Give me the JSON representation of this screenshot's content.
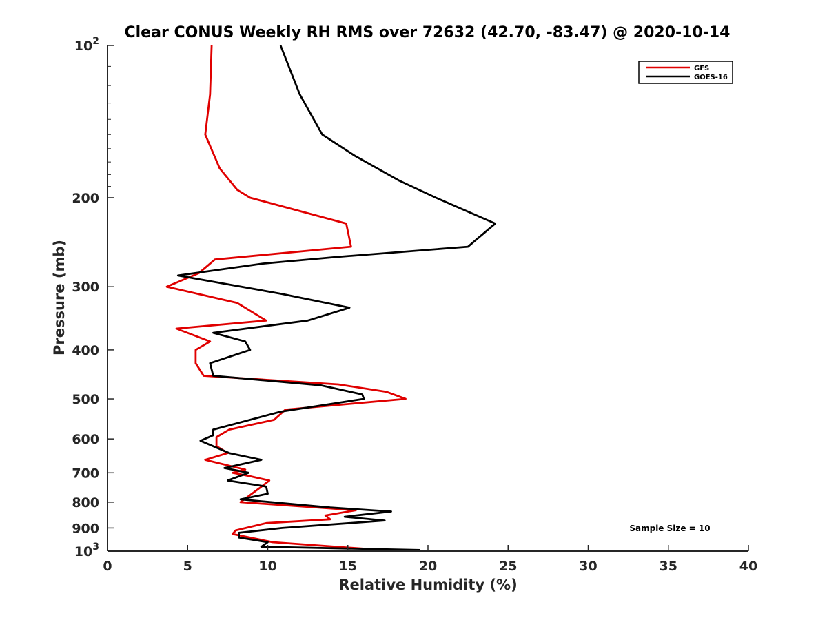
{
  "chart_data": {
    "type": "line",
    "title": "Clear CONUS Weekly RH RMS over 72632 (42.70, -83.47) @ 2020-10-14",
    "xlabel": "Relative Humidity (%)",
    "ylabel": "Pressure (mb)",
    "xlim": [
      0,
      40
    ],
    "ylim": [
      100,
      1000
    ],
    "yscale": "log",
    "y_reversed": true,
    "grid": false,
    "legend_position": "top-right",
    "x_ticks": [
      "0",
      "5",
      "10",
      "15",
      "20",
      "25",
      "30",
      "35",
      "40"
    ],
    "y_ticks": [
      {
        "value": 100,
        "base": "10",
        "exp": "2"
      },
      {
        "value": 200,
        "label": "200"
      },
      {
        "value": 300,
        "label": "300"
      },
      {
        "value": 400,
        "label": "400"
      },
      {
        "value": 500,
        "label": "500"
      },
      {
        "value": 600,
        "label": "600"
      },
      {
        "value": 700,
        "label": "700"
      },
      {
        "value": 800,
        "label": "800"
      },
      {
        "value": 900,
        "label": "900"
      },
      {
        "value": 1000,
        "base": "10",
        "exp": "3"
      }
    ],
    "annotation": "Sample Size = 10",
    "series": [
      {
        "name": "GFS",
        "color": "#e00000",
        "points": [
          [
            6.5,
            100
          ],
          [
            6.4,
            125
          ],
          [
            6.1,
            150
          ],
          [
            7.0,
            175
          ],
          [
            8.1,
            193
          ],
          [
            8.9,
            200
          ],
          [
            14.9,
            225
          ],
          [
            15.2,
            250
          ],
          [
            6.7,
            265
          ],
          [
            5.7,
            282
          ],
          [
            3.7,
            300
          ],
          [
            8.1,
            323
          ],
          [
            9.9,
            350
          ],
          [
            4.3,
            363
          ],
          [
            6.4,
            385
          ],
          [
            5.5,
            400
          ],
          [
            5.5,
            425
          ],
          [
            6.0,
            450
          ],
          [
            14.4,
            468
          ],
          [
            17.4,
            484
          ],
          [
            18.6,
            500
          ],
          [
            11.1,
            525
          ],
          [
            10.4,
            550
          ],
          [
            7.6,
            575
          ],
          [
            6.8,
            595
          ],
          [
            6.8,
            620
          ],
          [
            7.5,
            640
          ],
          [
            6.1,
            660
          ],
          [
            8.6,
            690
          ],
          [
            7.8,
            700
          ],
          [
            8.9,
            711
          ],
          [
            10.1,
            725
          ],
          [
            9.5,
            750
          ],
          [
            8.3,
            800
          ],
          [
            15.5,
            830
          ],
          [
            13.6,
            850
          ],
          [
            13.9,
            865
          ],
          [
            9.9,
            880
          ],
          [
            8.0,
            910
          ],
          [
            7.8,
            925
          ],
          [
            10.3,
            960
          ],
          [
            16.2,
            990
          ]
        ]
      },
      {
        "name": "GOES-16",
        "color": "#000000",
        "points": [
          [
            10.8,
            100
          ],
          [
            12.0,
            125
          ],
          [
            13.4,
            150
          ],
          [
            15.4,
            165
          ],
          [
            18.2,
            185
          ],
          [
            20.5,
            200
          ],
          [
            24.2,
            225
          ],
          [
            22.5,
            250
          ],
          [
            14.3,
            262
          ],
          [
            9.7,
            270
          ],
          [
            4.4,
            285
          ],
          [
            10.9,
            310
          ],
          [
            15.1,
            330
          ],
          [
            12.5,
            350
          ],
          [
            6.6,
            370
          ],
          [
            8.6,
            385
          ],
          [
            8.9,
            400
          ],
          [
            6.4,
            425
          ],
          [
            6.6,
            450
          ],
          [
            13.3,
            470
          ],
          [
            15.9,
            490
          ],
          [
            16.0,
            500
          ],
          [
            10.8,
            530
          ],
          [
            6.6,
            575
          ],
          [
            6.6,
            590
          ],
          [
            5.8,
            605
          ],
          [
            7.6,
            640
          ],
          [
            9.6,
            660
          ],
          [
            7.3,
            685
          ],
          [
            8.8,
            700
          ],
          [
            7.5,
            725
          ],
          [
            9.9,
            745
          ],
          [
            10.0,
            770
          ],
          [
            8.3,
            790
          ],
          [
            13.9,
            820
          ],
          [
            17.7,
            835
          ],
          [
            14.8,
            855
          ],
          [
            17.3,
            870
          ],
          [
            10.9,
            900
          ],
          [
            8.2,
            920
          ],
          [
            8.2,
            940
          ],
          [
            10.0,
            960
          ],
          [
            9.6,
            980
          ],
          [
            19.5,
            995
          ]
        ]
      }
    ]
  }
}
